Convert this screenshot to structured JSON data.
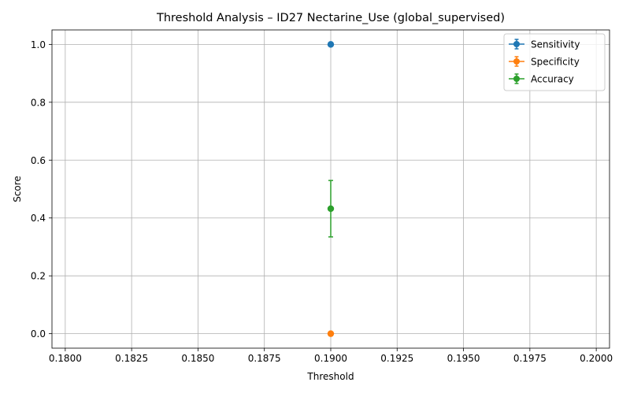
{
  "chart_data": {
    "type": "scatter",
    "title": "Threshold Analysis – ID27 Nectarine_Use (global_supervised)",
    "xlabel": "Threshold",
    "ylabel": "Score",
    "xlim": [
      0.1795,
      0.2005
    ],
    "ylim": [
      -0.05,
      1.05
    ],
    "xticks": [
      "0.1800",
      "0.1825",
      "0.1850",
      "0.1875",
      "0.1900",
      "0.1925",
      "0.1950",
      "0.1975",
      "0.2000"
    ],
    "yticks": [
      "0.0",
      "0.2",
      "0.4",
      "0.6",
      "0.8",
      "1.0"
    ],
    "grid": true,
    "legend_position": "top-right",
    "series": [
      {
        "name": "Sensitivity",
        "color": "#1f77b4",
        "x": [
          0.19
        ],
        "y": [
          1.0
        ],
        "err": [
          0.0
        ]
      },
      {
        "name": "Specificity",
        "color": "#ff7f0e",
        "x": [
          0.19
        ],
        "y": [
          0.0
        ],
        "err": [
          0.0
        ]
      },
      {
        "name": "Accuracy",
        "color": "#2ca02c",
        "x": [
          0.19
        ],
        "y": [
          0.4321
        ],
        "err": [
          0.0975
        ]
      }
    ]
  }
}
